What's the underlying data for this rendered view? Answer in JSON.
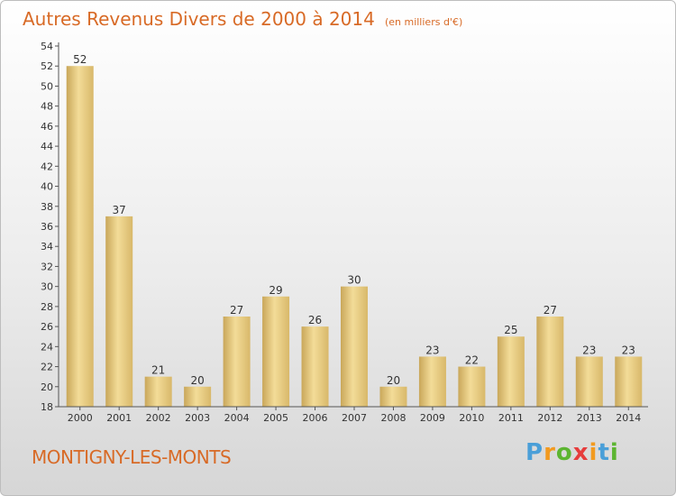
{
  "chart_data": {
    "type": "bar",
    "title": "Autres Revenus Divers de 2000 à 2014",
    "unit": "(en milliers d'€)",
    "categories": [
      "2000",
      "2001",
      "2002",
      "2003",
      "2004",
      "2005",
      "2006",
      "2007",
      "2008",
      "2009",
      "2010",
      "2011",
      "2012",
      "2013",
      "2014"
    ],
    "values": [
      52,
      37,
      21,
      20,
      27,
      29,
      26,
      30,
      20,
      23,
      22,
      25,
      27,
      23,
      23
    ],
    "ylim": [
      18,
      54
    ],
    "yticks": [
      18,
      20,
      22,
      24,
      26,
      28,
      30,
      32,
      34,
      36,
      38,
      40,
      42,
      44,
      46,
      48,
      50,
      52,
      54
    ],
    "grid": false,
    "legend": "none",
    "bar_color": "#e0c170"
  },
  "location": "MONTIGNY-LES-MONTS",
  "logo": {
    "letters": [
      "P",
      "r",
      "o",
      "x",
      "i",
      "t",
      "i"
    ],
    "colors": [
      "#4a9fd8",
      "#f29a1f",
      "#5cb531",
      "#e63d3d",
      "#f29a1f",
      "#4a9fd8",
      "#5cb531"
    ]
  }
}
